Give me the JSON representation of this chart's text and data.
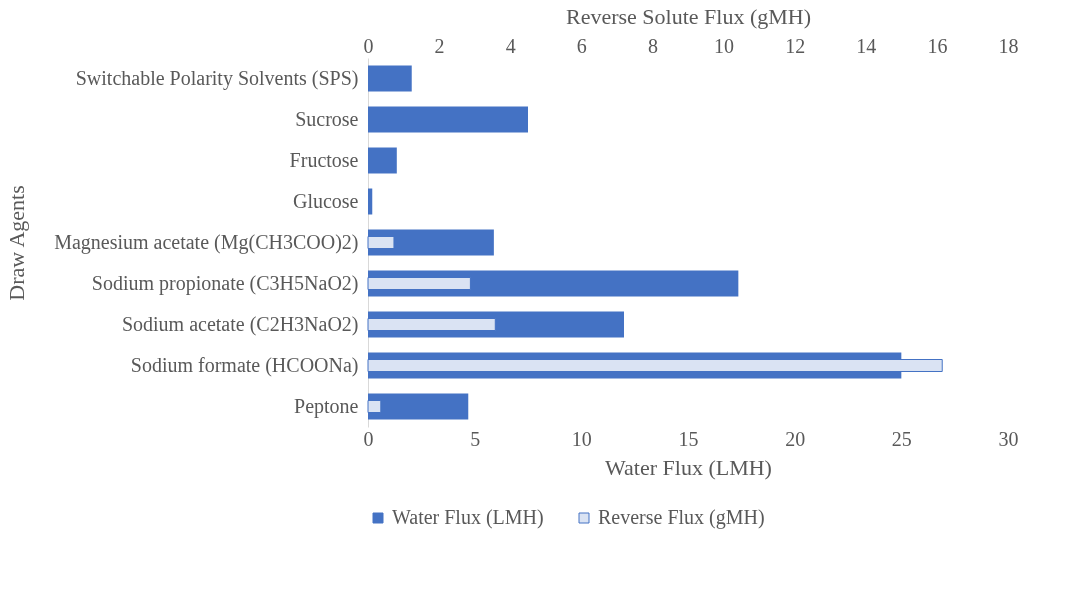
{
  "chart_data": {
    "type": "bar",
    "orientation": "horizontal",
    "xlabel": "Water Flux (LMH)",
    "x2label": "Reverse Solute Flux (gMH)",
    "ylabel": "Draw Agents",
    "categories": [
      "Switchable Polarity Solvents (SPS)",
      "Sucrose",
      "Fructose",
      "Glucose",
      "Magnesium acetate (Mg(CH3COO)2)",
      "Sodium propionate (C3H5NaO2)",
      "Sodium acetate (C2H3NaO2)",
      "Sodium formate (HCOONa)",
      "Peptone"
    ],
    "series": [
      {
        "name": "Water Flux (LMH)",
        "color": "#4472c4",
        "values": [
          2.05,
          7.5,
          1.35,
          0.2,
          5.9,
          17.36,
          12.0,
          25.0,
          4.7
        ]
      },
      {
        "name": "Reverse Flux (gMH)",
        "color": "#dae3f3",
        "axis": "x2",
        "values": [
          null,
          null,
          null,
          null,
          0.73,
          2.88,
          3.58,
          16.15,
          0.36
        ]
      }
    ],
    "xlim": [
      0,
      30
    ],
    "xticks": [
      0,
      5,
      10,
      15,
      20,
      25,
      30
    ],
    "x2lim": [
      0,
      18
    ],
    "x2ticks": [
      0,
      2,
      4,
      6,
      8,
      10,
      12,
      14,
      16,
      18
    ],
    "legend": "bottom",
    "grid": false
  }
}
